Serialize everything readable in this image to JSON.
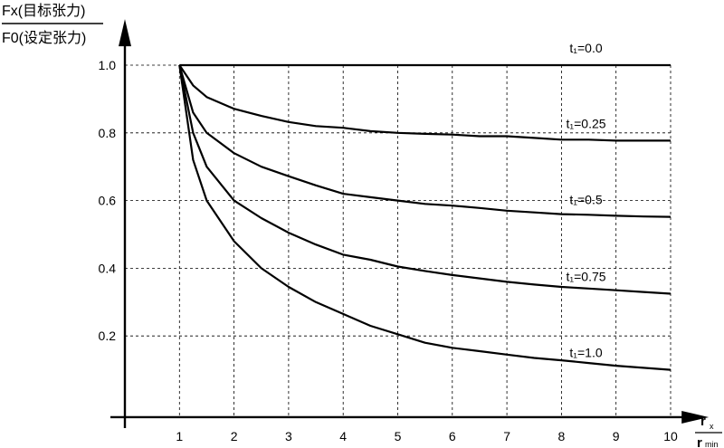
{
  "chart_data": {
    "type": "line",
    "ylabel_top": "Fx(目标张力)",
    "ylabel_bottom": "F0(设定张力)",
    "xlabel_top": "r",
    "xlabel_top_sub": "x",
    "xlabel_bottom": "r",
    "xlabel_bottom_sub": "min",
    "xlim": [
      0,
      10.6
    ],
    "ylim": [
      -0.04,
      1.12
    ],
    "xticks": [
      1,
      2,
      3,
      4,
      5,
      6,
      7,
      8,
      9,
      10
    ],
    "xtick_labels": [
      "1",
      "2",
      "3",
      "4",
      "5",
      "6",
      "7",
      "8",
      "9",
      "10"
    ],
    "yticks": [
      0.2,
      0.4,
      0.6,
      0.8,
      1.0
    ],
    "ytick_labels": [
      "0.2",
      "0.4",
      "0.6",
      "0.8",
      "1.0"
    ],
    "grid": true,
    "x": [
      1,
      1.25,
      1.5,
      2,
      2.5,
      3,
      3.5,
      4,
      4.5,
      5,
      5.5,
      6,
      6.5,
      7,
      7.5,
      8,
      8.5,
      9,
      9.5,
      10
    ],
    "series": [
      {
        "name": "t₁=0.0",
        "values": [
          1.0,
          1.0,
          1.0,
          1.0,
          1.0,
          1.0,
          1.0,
          1.0,
          1.0,
          1.0,
          1.0,
          1.0,
          1.0,
          1.0,
          1.0,
          1.0,
          1.0,
          1.0,
          1.0,
          1.0
        ]
      },
      {
        "name": "t₁=0.25",
        "values": [
          1.0,
          0.94,
          0.906,
          0.871,
          0.85,
          0.832,
          0.82,
          0.815,
          0.805,
          0.8,
          0.797,
          0.795,
          0.79,
          0.79,
          0.785,
          0.78,
          0.78,
          0.777,
          0.777,
          0.777
        ]
      },
      {
        "name": "t₁=0.5",
        "values": [
          1.0,
          0.86,
          0.8,
          0.74,
          0.7,
          0.672,
          0.645,
          0.62,
          0.61,
          0.6,
          0.59,
          0.585,
          0.578,
          0.57,
          0.565,
          0.56,
          0.558,
          0.555,
          0.553,
          0.552
        ]
      },
      {
        "name": "t₁=0.75",
        "values": [
          1.0,
          0.8,
          0.7,
          0.6,
          0.548,
          0.505,
          0.47,
          0.44,
          0.425,
          0.405,
          0.392,
          0.38,
          0.37,
          0.36,
          0.352,
          0.345,
          0.34,
          0.335,
          0.33,
          0.325
        ]
      },
      {
        "name": "t₁=1.0",
        "values": [
          1.0,
          0.72,
          0.6,
          0.48,
          0.4,
          0.345,
          0.3,
          0.265,
          0.23,
          0.205,
          0.18,
          0.165,
          0.155,
          0.145,
          0.135,
          0.128,
          0.12,
          0.112,
          0.106,
          0.1
        ]
      }
    ]
  }
}
